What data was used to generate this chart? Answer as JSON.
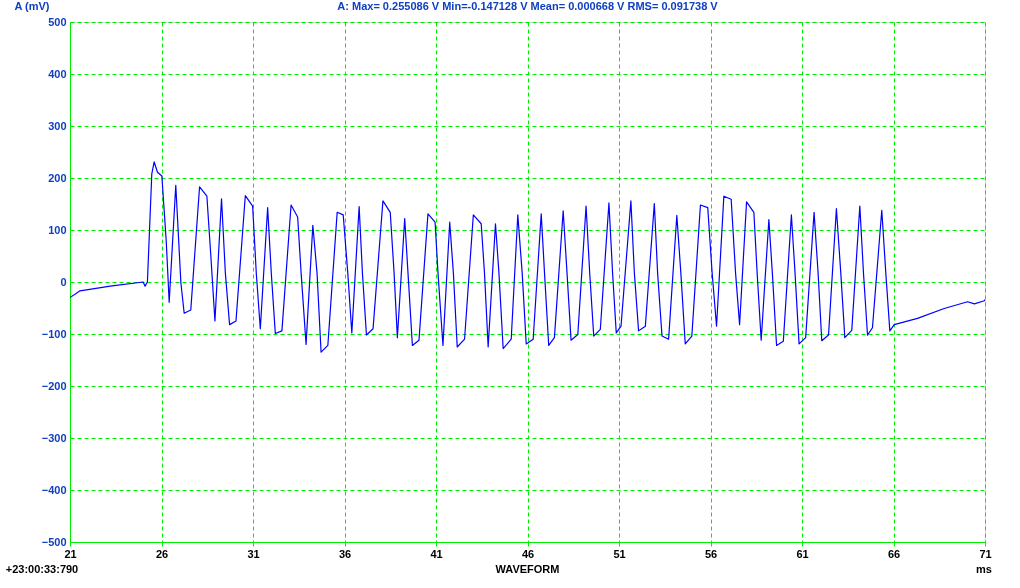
{
  "chart_data": {
    "type": "line",
    "title": "A: Max= 0.255086 V  Min=-0.147128 V  Mean= 0.000668 V  RMS= 0.091738 V",
    "ylabel": "A (mV)",
    "xlabel": "WAVEFORM",
    "annotations": [
      "ms",
      "+23:00:33:790"
    ],
    "xlim": [
      21,
      71
    ],
    "xticks": [
      21,
      26,
      31,
      36,
      41,
      46,
      51,
      56,
      61,
      66,
      71
    ],
    "ylim": [
      -500,
      500
    ],
    "yticks": [
      -500,
      -400,
      -300,
      -200,
      -100,
      0,
      100,
      200,
      300,
      400,
      500
    ],
    "grid": true,
    "marker": "none",
    "line_style": "solid",
    "series": [
      {
        "color": "#0000ff",
        "x": [
          21.0,
          21.55,
          23.2,
          25.0,
          25.1,
          25.23,
          25.47,
          25.6,
          25.78,
          26.02,
          26.26,
          26.42,
          26.78,
          27.06,
          27.24,
          27.6,
          28.08,
          28.48,
          28.7,
          28.92,
          29.28,
          29.49,
          29.72,
          30.07,
          30.58,
          30.98,
          31.18,
          31.4,
          31.8,
          32.0,
          32.22,
          32.58,
          33.08,
          33.44,
          33.63,
          33.9,
          34.27,
          34.5,
          34.72,
          35.09,
          35.6,
          35.93,
          36.18,
          36.4,
          36.8,
          36.98,
          37.2,
          37.56,
          38.1,
          38.5,
          38.71,
          38.89,
          39.29,
          39.47,
          39.71,
          40.07,
          40.56,
          40.95,
          41.11,
          41.38,
          41.75,
          41.95,
          42.16,
          42.56,
          43.04,
          43.47,
          43.65,
          43.85,
          44.25,
          44.44,
          44.67,
          45.11,
          45.47,
          45.71,
          45.93,
          46.31,
          46.75,
          46.93,
          47.16,
          47.47,
          47.95,
          48.16,
          48.38,
          48.75,
          49.2,
          49.4,
          49.62,
          49.98,
          50.45,
          50.65,
          50.85,
          51.11,
          51.65,
          51.84,
          52.07,
          52.44,
          52.93,
          53.11,
          53.35,
          53.71,
          54.16,
          54.38,
          54.62,
          54.98,
          55.45,
          55.85,
          56.09,
          56.33,
          56.73,
          57.13,
          57.37,
          57.59,
          57.97,
          58.37,
          58.55,
          58.77,
          59.19,
          59.38,
          59.61,
          59.98,
          60.42,
          60.62,
          60.84,
          61.2,
          61.66,
          61.88,
          62.08,
          62.45,
          62.88,
          63.12,
          63.34,
          63.72,
          64.16,
          64.36,
          64.58,
          64.85,
          65.36,
          65.58,
          65.8,
          66.04,
          67.31,
          68.77,
          70.05,
          70.42,
          70.96,
          71.0
        ],
        "values": [
          -30,
          -17,
          -8,
          0,
          -8,
          0,
          208,
          231,
          211,
          204,
          78,
          -39,
          186,
          -2,
          -60,
          -54,
          183,
          165,
          48,
          -75,
          160,
          17,
          -82,
          -75,
          166,
          146,
          17,
          -90,
          143,
          17,
          -99,
          -94,
          148,
          125,
          17,
          -120,
          109,
          17,
          -135,
          -122,
          134,
          129,
          17,
          -98,
          145,
          17,
          -102,
          -90,
          156,
          134,
          17,
          -107,
          122,
          17,
          -122,
          -112,
          131,
          115,
          17,
          -122,
          115,
          17,
          -125,
          -110,
          129,
          112,
          17,
          -125,
          112,
          17,
          -128,
          -110,
          129,
          17,
          -119,
          -110,
          131,
          17,
          -122,
          -107,
          137,
          17,
          -112,
          -101,
          146,
          17,
          -104,
          -91,
          152,
          17,
          -98,
          -85,
          156,
          17,
          -94,
          -85,
          151,
          17,
          -104,
          -110,
          128,
          17,
          -119,
          -104,
          148,
          143,
          17,
          -85,
          165,
          159,
          17,
          -82,
          154,
          134,
          17,
          -112,
          120,
          17,
          -122,
          -114,
          129,
          17,
          -119,
          -107,
          134,
          17,
          -113,
          -102,
          141,
          17,
          -107,
          -93,
          146,
          17,
          -102,
          -88,
          138,
          17,
          -94,
          -82,
          -70,
          -51,
          -38,
          -42,
          -36,
          -34
        ]
      }
    ]
  }
}
